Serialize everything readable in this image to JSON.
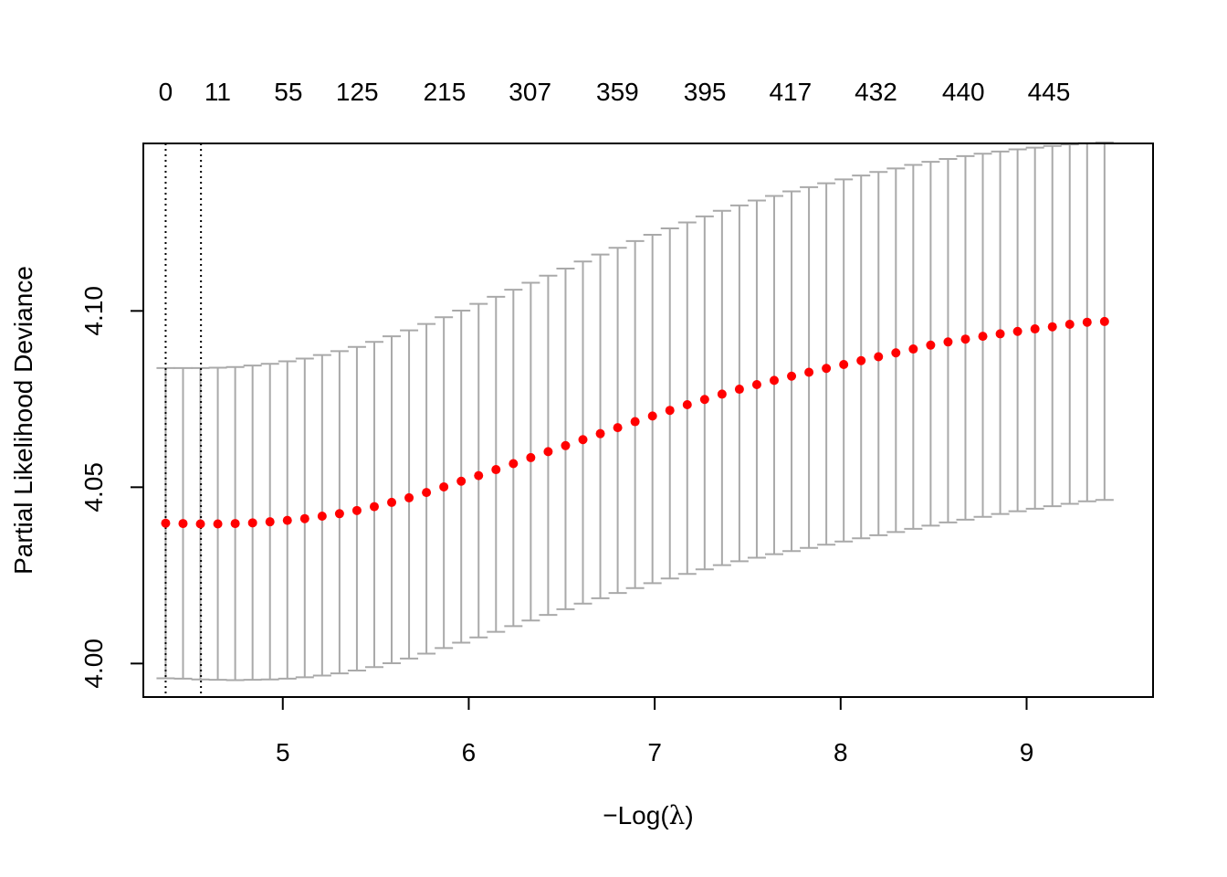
{
  "chart_data": {
    "type": "scatter",
    "xlabel": {
      "prefix": "−",
      "main": "Log(",
      "symbol": "λ",
      "close": ")"
    },
    "ylabel": "Partial Likelihood Deviance",
    "xlim": [
      4.25,
      9.68
    ],
    "ylim": [
      3.9905,
      4.1475
    ],
    "xticks": [
      5,
      6,
      7,
      8,
      9
    ],
    "xtick_labels": [
      "5",
      "6",
      "7",
      "8",
      "9"
    ],
    "yticks": [
      4.0,
      4.05,
      4.1
    ],
    "ytick_labels": [
      "4.00",
      "4.05",
      "4.10"
    ],
    "top_axis": {
      "x": [
        4.37,
        4.65,
        5.03,
        5.4,
        5.87,
        6.33,
        6.8,
        7.27,
        7.73,
        8.19,
        8.66,
        9.12
      ],
      "labels": [
        "0",
        "11",
        "55",
        "125",
        "215",
        "307",
        "359",
        "395",
        "417",
        "432",
        "440",
        "445"
      ]
    },
    "vlines": [
      4.37,
      4.56
    ],
    "grid": false,
    "series": [
      {
        "x_start": 4.37,
        "x_step": 0.0935,
        "y": [
          4.0398,
          4.0397,
          4.0396,
          4.0396,
          4.0397,
          4.0399,
          4.0402,
          4.0406,
          4.0411,
          4.0418,
          4.0425,
          4.0434,
          4.0445,
          4.0457,
          4.047,
          4.0485,
          4.0501,
          4.0517,
          4.0533,
          4.055,
          4.0567,
          4.0584,
          4.0601,
          4.0618,
          4.0635,
          4.0652,
          4.0669,
          4.0686,
          4.0702,
          4.0718,
          4.0734,
          4.0749,
          4.0764,
          4.0778,
          4.0791,
          4.0803,
          4.0815,
          4.0826,
          4.0837,
          4.0848,
          4.0859,
          4.087,
          4.0881,
          4.0892,
          4.0903,
          4.0912,
          4.092,
          4.0928,
          4.0935,
          4.0942,
          4.0949,
          4.0955,
          4.0962,
          4.0968,
          4.097
        ],
        "upper": [
          4.0838,
          4.0838,
          4.0838,
          4.0839,
          4.0841,
          4.0845,
          4.085,
          4.0857,
          4.0865,
          4.0875,
          4.0886,
          4.0898,
          4.0912,
          4.0928,
          4.0945,
          4.0963,
          4.0982,
          4.1001,
          4.102,
          4.104,
          4.106,
          4.108,
          4.11,
          4.112,
          4.114,
          4.116,
          4.1179,
          4.1198,
          4.1216,
          4.1234,
          4.1251,
          4.1268,
          4.1284,
          4.1299,
          4.1313,
          4.1326,
          4.1339,
          4.1351,
          4.1362,
          4.1373,
          4.1384,
          4.1394,
          4.1404,
          4.1414,
          4.1423,
          4.1431,
          4.1439,
          4.1446,
          4.1452,
          4.1458,
          4.1463,
          4.1468,
          4.1472,
          4.1476,
          4.1478
        ],
        "lower": [
          3.9958,
          3.9957,
          3.9955,
          3.9954,
          3.9953,
          3.9954,
          3.9955,
          3.9957,
          3.9961,
          3.9966,
          3.9972,
          3.998,
          3.999,
          4.0001,
          4.0014,
          4.0028,
          4.0044,
          4.0059,
          4.0074,
          4.009,
          4.0106,
          4.0122,
          4.0138,
          4.0154,
          4.017,
          4.0185,
          4.02,
          4.0214,
          4.0228,
          4.0241,
          4.0254,
          4.0267,
          4.0279,
          4.029,
          4.03,
          4.031,
          4.0319,
          4.0328,
          4.0337,
          4.0346,
          4.0355,
          4.0364,
          4.0373,
          4.0382,
          4.0391,
          4.04,
          4.0408,
          4.0416,
          4.0424,
          4.0432,
          4.0439,
          4.0446,
          4.0453,
          4.046,
          4.0464
        ]
      }
    ],
    "colors": {
      "points": "#ff0000",
      "errorbars": "#a9a9a9",
      "axes": "#000000",
      "vlines": "#000000"
    }
  }
}
